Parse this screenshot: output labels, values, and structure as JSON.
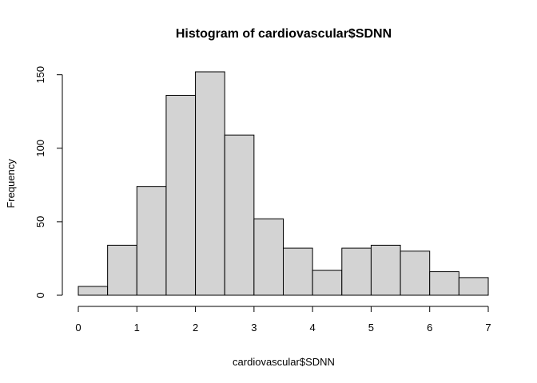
{
  "chart_data": {
    "type": "bar",
    "title": "Histogram of cardiovascular$SDNN",
    "xlabel": "cardiovascular$SDNN",
    "ylabel": "Frequency",
    "bins": [
      {
        "x0": 0.0,
        "x1": 0.5,
        "count": 6
      },
      {
        "x0": 0.5,
        "x1": 1.0,
        "count": 34
      },
      {
        "x0": 1.0,
        "x1": 1.5,
        "count": 74
      },
      {
        "x0": 1.5,
        "x1": 2.0,
        "count": 136
      },
      {
        "x0": 2.0,
        "x1": 2.5,
        "count": 152
      },
      {
        "x0": 2.5,
        "x1": 3.0,
        "count": 109
      },
      {
        "x0": 3.0,
        "x1": 3.5,
        "count": 52
      },
      {
        "x0": 3.5,
        "x1": 4.0,
        "count": 32
      },
      {
        "x0": 4.0,
        "x1": 4.5,
        "count": 17
      },
      {
        "x0": 4.5,
        "x1": 5.0,
        "count": 32
      },
      {
        "x0": 5.0,
        "x1": 5.5,
        "count": 34
      },
      {
        "x0": 5.5,
        "x1": 6.0,
        "count": 30
      },
      {
        "x0": 6.0,
        "x1": 6.5,
        "count": 16
      },
      {
        "x0": 6.5,
        "x1": 7.0,
        "count": 12
      }
    ],
    "xlim": [
      0,
      7
    ],
    "ylim": [
      0,
      152
    ],
    "x_ticks": [
      0,
      1,
      2,
      3,
      4,
      5,
      6,
      7
    ],
    "y_ticks": [
      0,
      50,
      100,
      150
    ],
    "grid": false,
    "bar_fill": "#d3d3d3",
    "bar_stroke": "#000000"
  }
}
